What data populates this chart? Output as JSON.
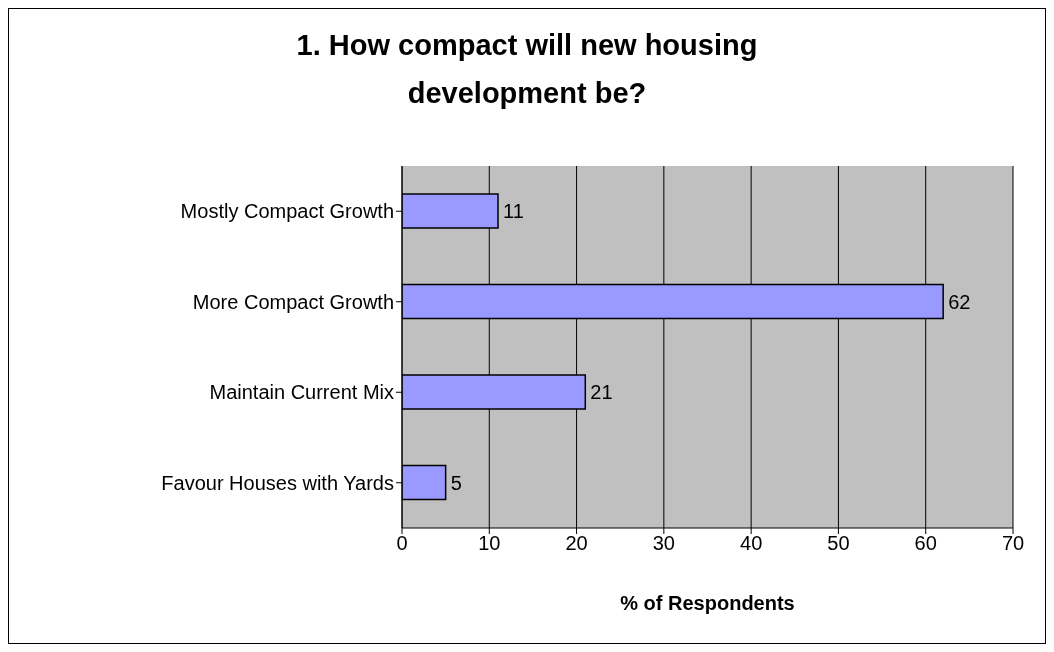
{
  "chart_data": {
    "type": "bar",
    "orientation": "horizontal",
    "title": "1. How compact will new housing development be?",
    "categories": [
      "Mostly Compact Growth",
      "More Compact Growth",
      "Maintain Current Mix",
      "Favour Houses with Yards"
    ],
    "values": [
      11,
      62,
      21,
      5
    ],
    "color": "#9999ff",
    "data_labels": true,
    "xlabel": "% of Respondents",
    "xlim": [
      0,
      70
    ],
    "xticks": [
      0,
      10,
      20,
      30,
      40,
      50,
      60,
      70
    ],
    "grid": "x"
  }
}
